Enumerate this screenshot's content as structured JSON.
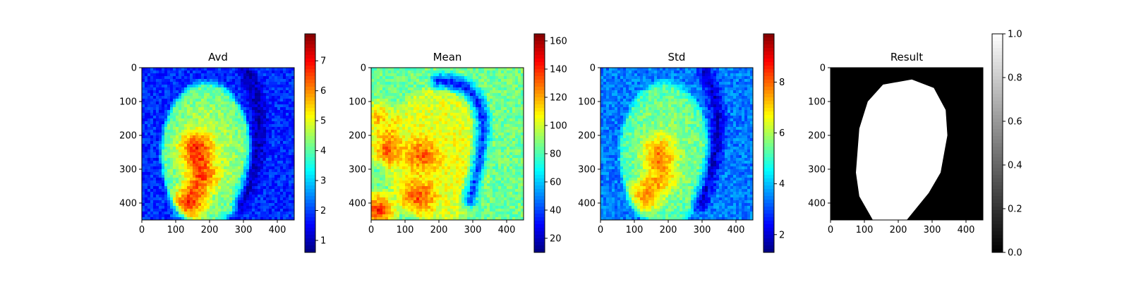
{
  "figure": {
    "background": "#ffffff",
    "panel_count": 4
  },
  "chart_data": [
    {
      "type": "heatmap",
      "title": "Avd",
      "xticks": [
        0,
        100,
        200,
        300,
        400
      ],
      "yticks": [
        0,
        100,
        200,
        300,
        400
      ],
      "xlim": [
        0,
        450
      ],
      "ylim": [
        450,
        0
      ],
      "colorbar": {
        "colormap": "jet",
        "range": [
          0.6,
          7.9
        ],
        "ticks": [
          1,
          2,
          3,
          4,
          5,
          6,
          7
        ]
      },
      "ellipse": {
        "cx": 190,
        "cy": 255,
        "rx": 125,
        "ry": 200
      },
      "dark_arc": {
        "x0": 310,
        "y0": 15,
        "x1": 390,
        "y1": 160,
        "x2": 295,
        "y2": 400
      },
      "hotspots": [
        {
          "x": 160,
          "y": 240,
          "v": 6.3
        },
        {
          "x": 175,
          "y": 320,
          "v": 6.1
        },
        {
          "x": 140,
          "y": 400,
          "v": 6.8
        }
      ],
      "background_level": 1.8,
      "ellipse_level": 4.0
    },
    {
      "type": "heatmap",
      "title": "Mean",
      "xticks": [
        0,
        100,
        200,
        300,
        400
      ],
      "yticks": [
        0,
        100,
        200,
        300,
        400
      ],
      "xlim": [
        0,
        450
      ],
      "ylim": [
        450,
        0
      ],
      "colorbar": {
        "colormap": "jet",
        "range": [
          10,
          165
        ],
        "ticks": [
          20,
          40,
          60,
          80,
          100,
          120,
          140,
          160
        ]
      },
      "ellipse": {
        "cx": 195,
        "cy": 260,
        "rx": 150,
        "ry": 190
      },
      "dark_arc": {
        "x0": 200,
        "y0": 40,
        "x1": 400,
        "y1": 40,
        "x2": 290,
        "y2": 390
      },
      "hotspots": [
        {
          "x": 20,
          "y": 150,
          "v": 135
        },
        {
          "x": 40,
          "y": 240,
          "v": 140
        },
        {
          "x": 150,
          "y": 260,
          "v": 130
        },
        {
          "x": 140,
          "y": 380,
          "v": 135
        },
        {
          "x": 20,
          "y": 420,
          "v": 160
        }
      ],
      "background_level": 85,
      "ellipse_level": 100
    },
    {
      "type": "heatmap",
      "title": "Std",
      "xticks": [
        0,
        100,
        200,
        300,
        400
      ],
      "yticks": [
        0,
        100,
        200,
        300,
        400
      ],
      "xlim": [
        0,
        450
      ],
      "ylim": [
        450,
        0
      ],
      "colorbar": {
        "colormap": "jet",
        "range": [
          1.3,
          9.9
        ],
        "ticks": [
          2,
          4,
          6,
          8
        ]
      },
      "ellipse": {
        "cx": 190,
        "cy": 255,
        "rx": 125,
        "ry": 200
      },
      "dark_arc": {
        "x0": 310,
        "y0": 15,
        "x1": 390,
        "y1": 160,
        "x2": 295,
        "y2": 400
      },
      "hotspots": [
        {
          "x": 170,
          "y": 250,
          "v": 7.2
        },
        {
          "x": 180,
          "y": 320,
          "v": 7.0
        },
        {
          "x": 130,
          "y": 380,
          "v": 7.6
        }
      ],
      "background_level": 3.4,
      "ellipse_level": 5.2
    },
    {
      "type": "heatmap",
      "title": "Result",
      "xticks": [
        0,
        100,
        200,
        300,
        400
      ],
      "yticks": [
        0,
        100,
        200,
        300,
        400
      ],
      "xlim": [
        0,
        450
      ],
      "ylim": [
        450,
        0
      ],
      "colorbar": {
        "colormap": "gray",
        "range": [
          0.0,
          1.0
        ],
        "ticks": [
          0.0,
          0.2,
          0.4,
          0.6,
          0.8,
          1.0
        ]
      },
      "mask_polygon": [
        [
          240,
          35
        ],
        [
          305,
          60
        ],
        [
          340,
          125
        ],
        [
          345,
          200
        ],
        [
          325,
          310
        ],
        [
          290,
          370
        ],
        [
          225,
          450
        ],
        [
          125,
          450
        ],
        [
          85,
          380
        ],
        [
          75,
          310
        ],
        [
          85,
          180
        ],
        [
          110,
          100
        ],
        [
          155,
          50
        ]
      ]
    }
  ]
}
